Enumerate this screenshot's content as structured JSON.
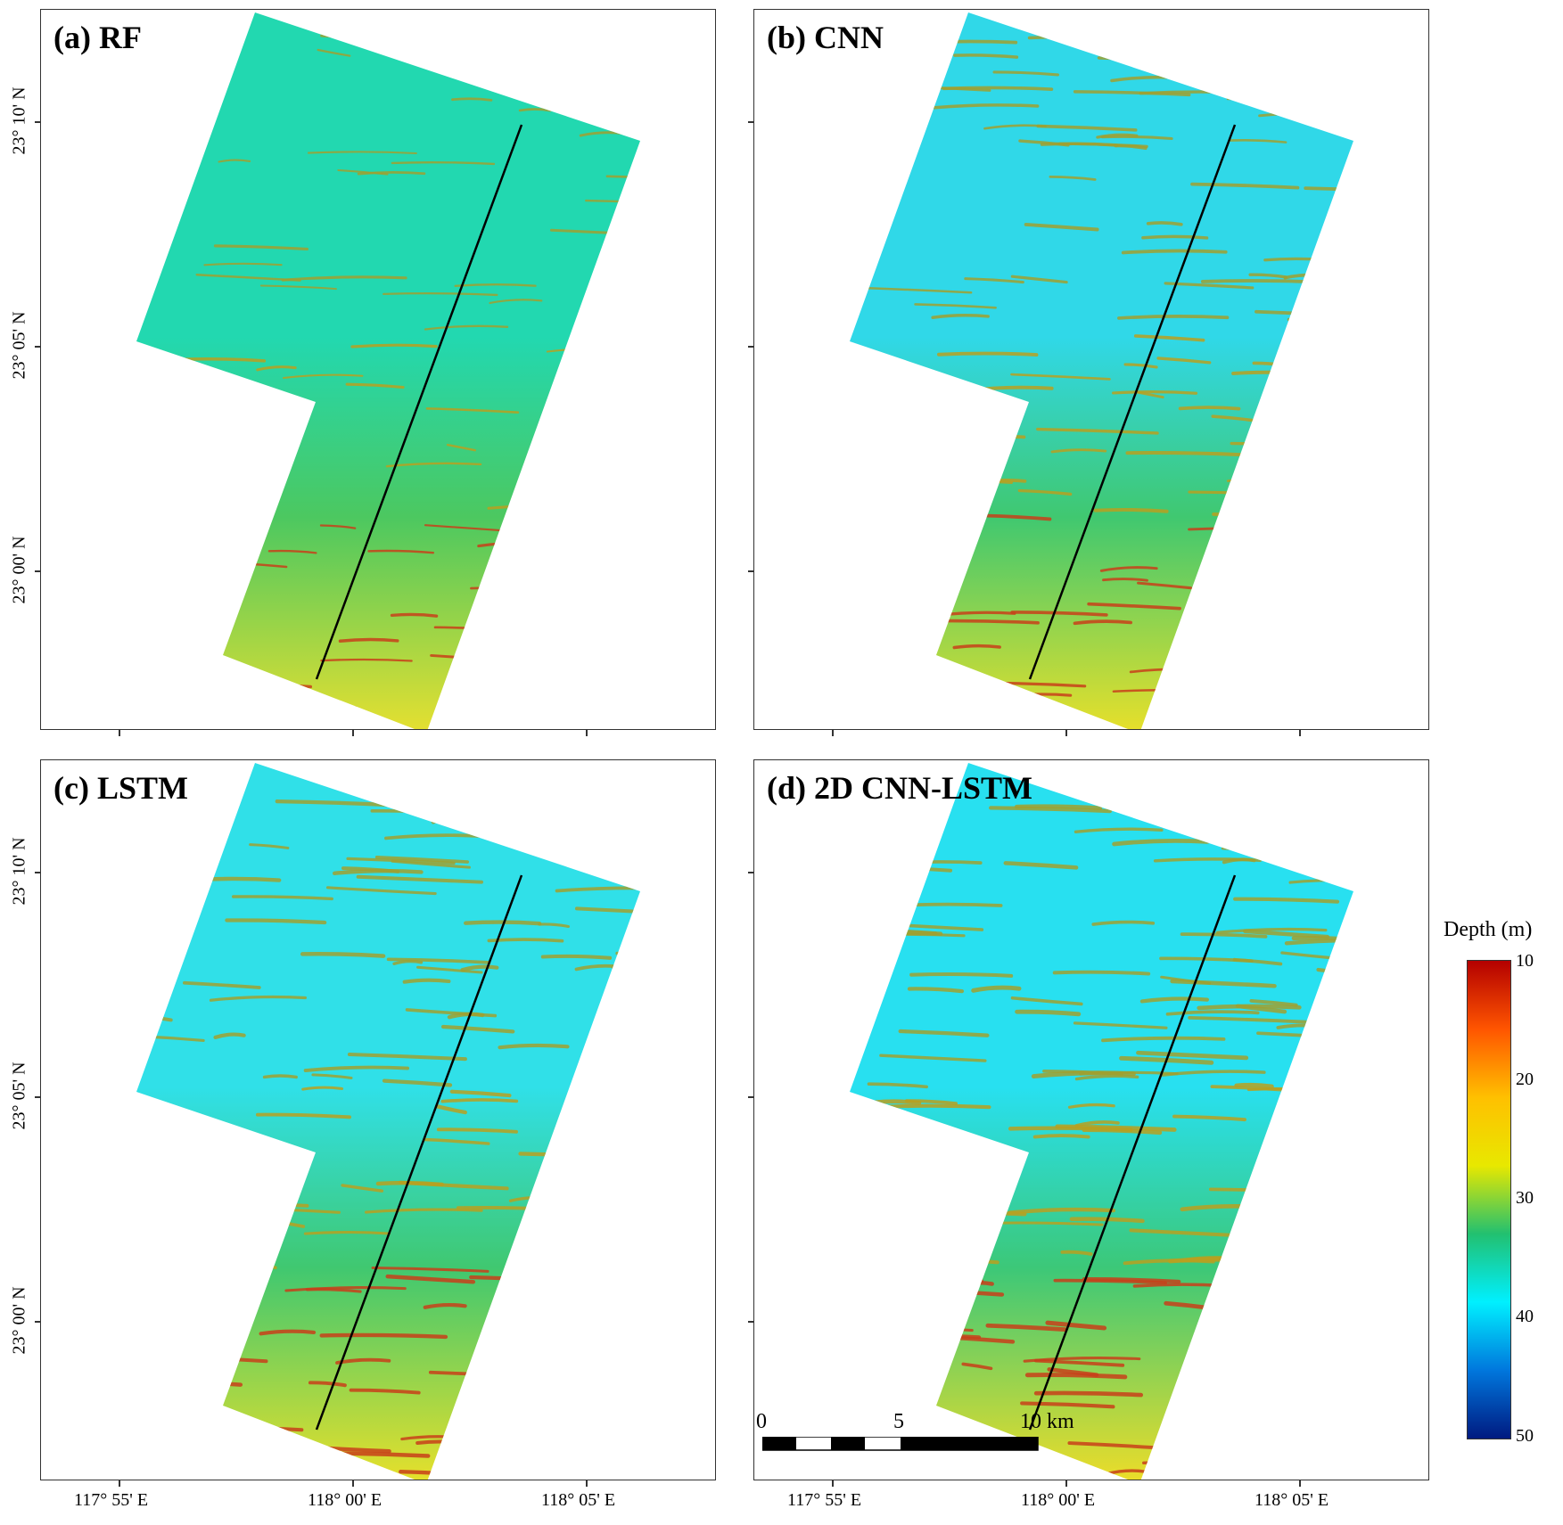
{
  "panels": [
    {
      "label": "(a) RF",
      "style": "rf"
    },
    {
      "label": "(b) CNN",
      "style": "cnn"
    },
    {
      "label": "(c) LSTM",
      "style": "lstm"
    },
    {
      "label": "(d) 2D CNN-LSTM",
      "style": "cnnlstm"
    }
  ],
  "axes": {
    "latitude_labels": [
      "23° 10' N",
      "23° 05' N",
      "23° 00' N"
    ],
    "longitude_labels": [
      "117° 55' E",
      "118° 00' E",
      "118° 05' E"
    ]
  },
  "legend": {
    "title": "Depth (m)",
    "ticks": [
      "10",
      "20",
      "30",
      "40",
      "50"
    ],
    "colors": [
      "#b30000",
      "#ff5500",
      "#ffc000",
      "#e8e800",
      "#22c070",
      "#00f0ff",
      "#0077dd",
      "#001a80"
    ]
  },
  "scale_bar": {
    "labels": [
      "0",
      "5",
      "10 km"
    ]
  },
  "profile_line_color": "#000000"
}
